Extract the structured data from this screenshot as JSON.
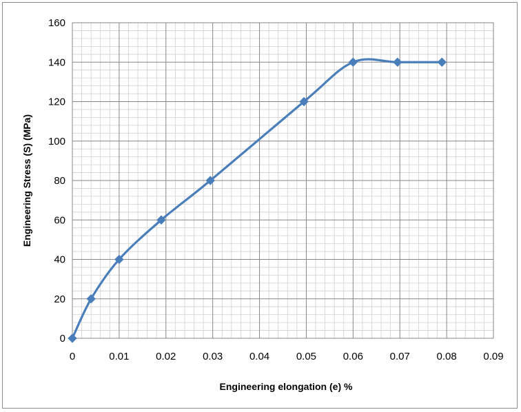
{
  "chart_data": {
    "type": "line",
    "title": "",
    "xlabel": "Engineering elongation  (e) %",
    "ylabel": "Engineering  Stress (S) (MPa)",
    "xlim": [
      0,
      0.09
    ],
    "ylim": [
      0,
      160
    ],
    "x_ticks": [
      "0",
      "0.01",
      "0.02",
      "0.03",
      "0.04",
      "0.05",
      "0.06",
      "0.07",
      "0.08",
      "0.09"
    ],
    "y_ticks": [
      "0",
      "20",
      "40",
      "60",
      "80",
      "100",
      "120",
      "140",
      "160"
    ],
    "grid": true,
    "legend": "none",
    "marker": "diamond",
    "series": [
      {
        "color": "#4a7ebb",
        "x": [
          0,
          0.004,
          0.01,
          0.019,
          0.0295,
          0.0495,
          0.06,
          0.0695,
          0.079
        ],
        "y": [
          0,
          20,
          40,
          60,
          80,
          120,
          140,
          140,
          140
        ]
      }
    ]
  }
}
